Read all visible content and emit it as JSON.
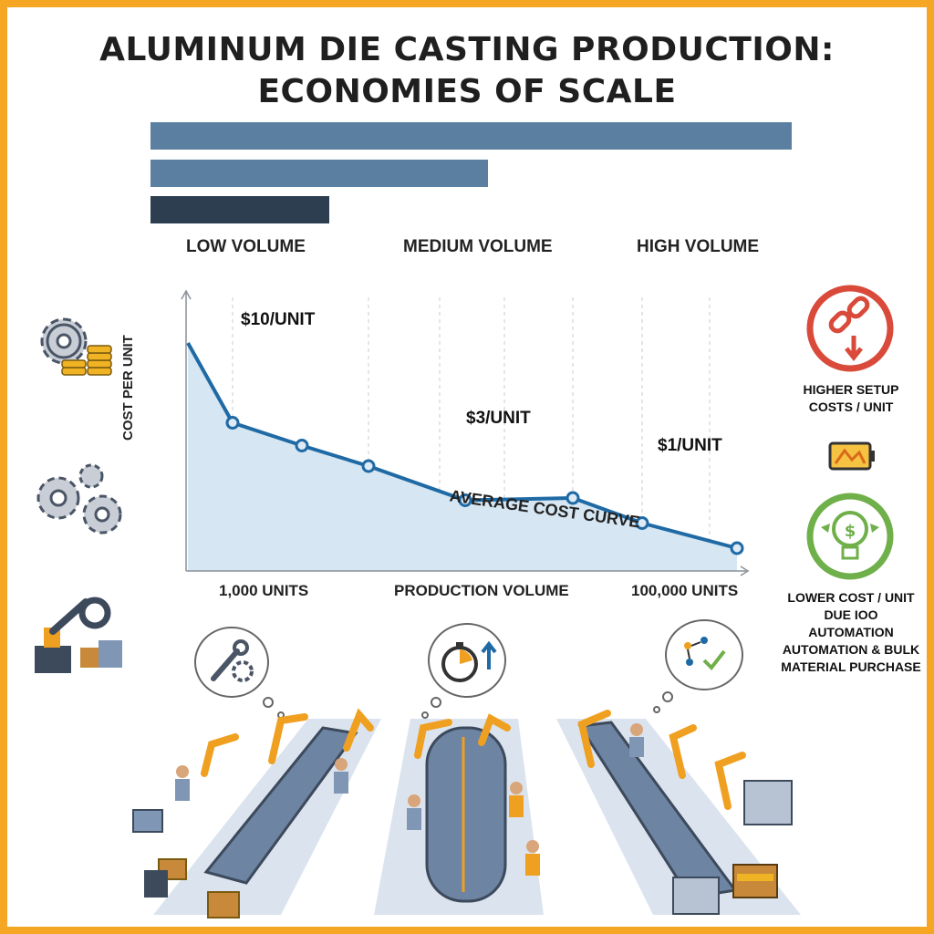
{
  "title_line1": "ALUMINUM DIE CASTING PRODUCTION:",
  "title_line2": "ECONOMIES OF SCALE",
  "volume_levels": [
    "LOW VOLUME",
    "MEDIUM VOLUME",
    "HIGH VOLUME"
  ],
  "top_bars": {
    "values": [
      1.0,
      0.53,
      0.28
    ],
    "colors": [
      "#5b7fa0",
      "#5b7fa0",
      "#2c3e50"
    ]
  },
  "chart_data": {
    "type": "line",
    "title": "",
    "xlabel": "PRODUCTION VOLUME",
    "ylabel": "COST PER UNIT",
    "x_tick_labels": [
      "1,000 UNITS",
      "100,000 UNITS"
    ],
    "series": [
      {
        "name": "AVERAGE COST CURVE",
        "x": [
          0,
          1,
          2,
          3,
          4,
          5,
          6,
          7
        ],
        "y": [
          10,
          6.5,
          5.5,
          4.6,
          3.1,
          3.2,
          2.1,
          1
        ]
      }
    ],
    "data_labels": [
      "$10/UNIT",
      "$3/UNIT",
      "$1/UNIT"
    ],
    "grid": true,
    "colors": {
      "line": "#1f6aa5",
      "fill": "#d6e6f2"
    }
  },
  "side_notes": {
    "higher_setup": [
      "HIGHER SETUP",
      "COSTS / UNIT"
    ],
    "lower_cost": [
      "LOWER COST / UNIT",
      "DUE IOO AUTOMATION",
      "AUTOMATION & BULK",
      "MATERIAL PURCHASE"
    ]
  },
  "icons": {
    "left": [
      "gears-coins-icon",
      "gears-icon",
      "robot-arm-wrench-icon"
    ],
    "right": [
      "broken-chain-icon",
      "battery-icon",
      "lightbulb-dollar-icon"
    ],
    "bubbles": [
      "wrench-gear-icon",
      "stopwatch-icon",
      "flowchart-check-icon"
    ]
  },
  "accent_colors": {
    "frame": "#f5a623",
    "red": "#d94a3a",
    "green": "#6fb04a",
    "orange": "#f0a020",
    "steel": "#7f96b5"
  }
}
